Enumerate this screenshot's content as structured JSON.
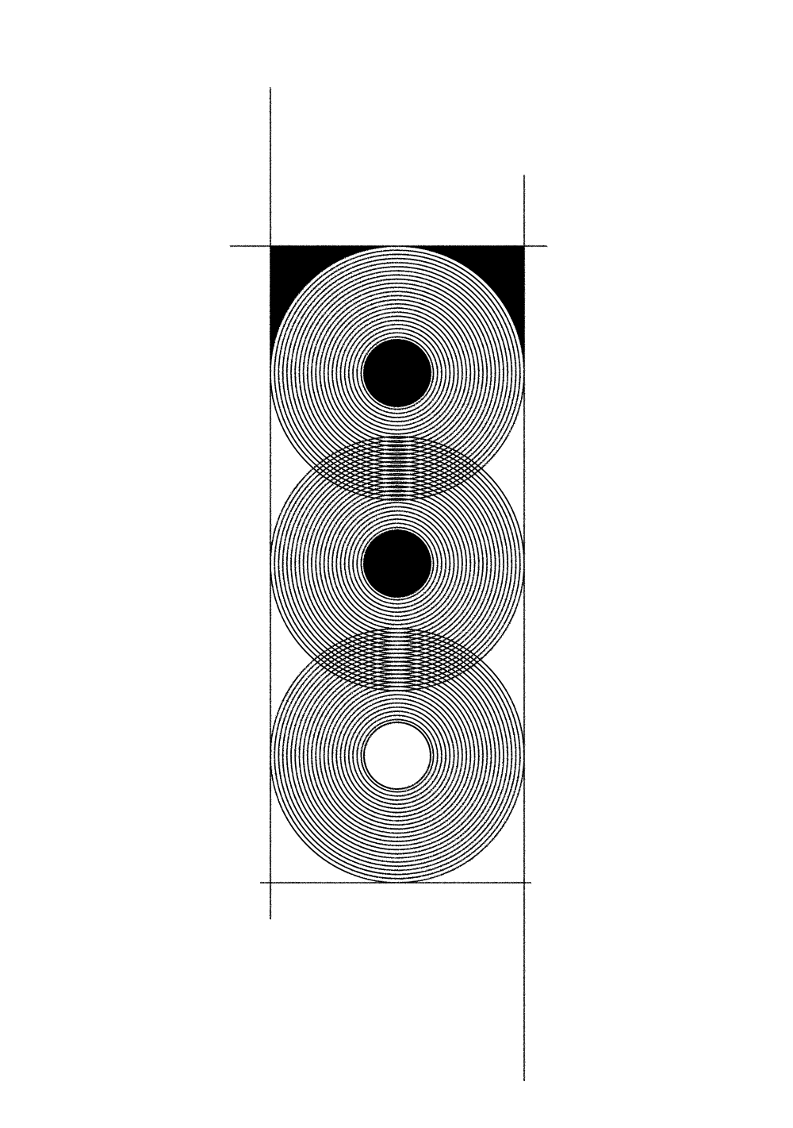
{
  "artwork": {
    "ink_color": "#000000",
    "paper_color": "#ffffff",
    "circles": [
      {
        "name": "top-circle",
        "center_hole": "filled"
      },
      {
        "name": "middle-circle",
        "center_hole": "filled"
      },
      {
        "name": "bottom-circle",
        "center_hole": "open"
      }
    ]
  }
}
